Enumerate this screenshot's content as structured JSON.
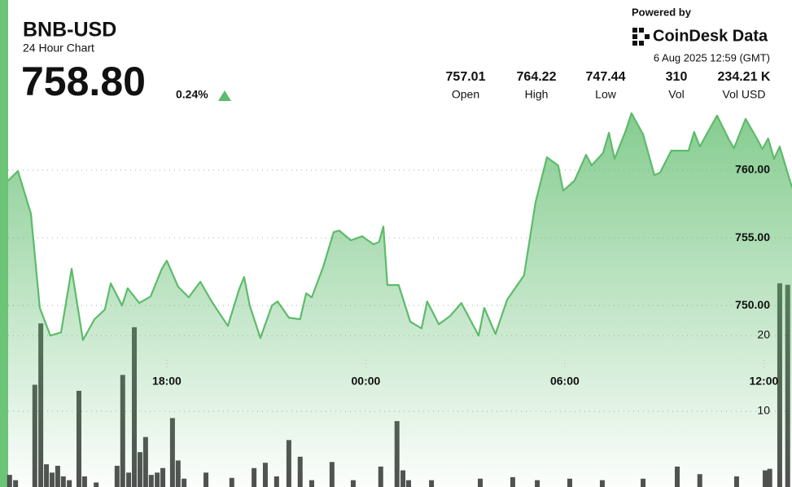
{
  "header": {
    "title": "BNB-USD",
    "subtitle": "24 Hour Chart",
    "price": "758.80",
    "change": "0.24%",
    "powered_by": "Powered by",
    "brand": "CoinDesk Data",
    "timestamp": "6 Aug 2025 12:59 (GMT)",
    "stats": [
      {
        "value": "757.01",
        "label": "Open"
      },
      {
        "value": "764.22",
        "label": "High"
      },
      {
        "value": "747.44",
        "label": "Low"
      },
      {
        "value": "310",
        "label": "Vol"
      },
      {
        "value": "234.21 K",
        "label": "Vol USD"
      }
    ]
  },
  "chart_data": {
    "type": "line",
    "xlim": [
      12.97,
      36.85
    ],
    "xticks": [
      {
        "value": 18,
        "label": "18:00"
      },
      {
        "value": 24,
        "label": "00:00"
      },
      {
        "value": 30,
        "label": "06:00"
      },
      {
        "value": 36,
        "label": "12:00"
      }
    ],
    "ylim": [
      737,
      765
    ],
    "yticks": [
      {
        "value": 750,
        "label": "750.00"
      },
      {
        "value": 755,
        "label": "755.00"
      },
      {
        "value": 760,
        "label": "760.00"
      }
    ],
    "y2lim": [
      0,
      50
    ],
    "y2ticks": [
      10,
      20
    ],
    "grid": true,
    "series": [
      {
        "type": "line",
        "color": "#5dbb6b",
        "x": [
          13.21,
          13.51,
          13.9,
          14.17,
          14.49,
          14.81,
          15.13,
          15.47,
          15.82,
          16.13,
          16.31,
          16.65,
          16.82,
          17.17,
          17.51,
          17.85,
          18.0,
          18.34,
          18.66,
          19.01,
          19.35,
          19.84,
          20.18,
          20.33,
          20.5,
          20.82,
          21.17,
          21.34,
          21.68,
          22.02,
          22.2,
          22.37,
          22.71,
          23.03,
          23.2,
          23.55,
          23.89,
          24.23,
          24.4,
          24.53,
          24.65,
          24.99,
          25.34,
          25.68,
          25.85,
          26.2,
          26.54,
          26.88,
          27.4,
          27.57,
          27.91,
          28.26,
          28.77,
          29.12,
          29.46,
          29.8,
          29.95,
          30.29,
          30.64,
          30.81,
          31.15,
          31.33,
          31.5,
          31.84,
          32.01,
          32.36,
          32.7,
          32.87,
          33.21,
          33.73,
          33.9,
          34.07,
          34.59,
          34.93,
          35.1,
          35.45,
          35.79,
          35.96,
          36.13,
          36.31,
          36.48,
          36.85
        ],
        "values": [
          759.22,
          759.94,
          756.81,
          749.82,
          747.77,
          748.01,
          752.71,
          747.44,
          748.98,
          749.7,
          751.63,
          750.0,
          751.27,
          750.18,
          750.66,
          752.71,
          753.31,
          751.39,
          750.6,
          751.75,
          750.3,
          748.49,
          751.2,
          752.11,
          750.0,
          747.59,
          750.0,
          750.3,
          749.1,
          748.98,
          750.9,
          750.6,
          752.83,
          755.42,
          755.54,
          754.82,
          755.12,
          754.52,
          754.7,
          755.84,
          751.51,
          751.51,
          748.8,
          748.31,
          750.3,
          748.61,
          749.22,
          750.18,
          747.77,
          749.82,
          747.89,
          750.42,
          752.23,
          757.65,
          760.96,
          760.36,
          758.49,
          759.22,
          761.14,
          760.36,
          761.27,
          762.77,
          760.84,
          762.95,
          764.22,
          762.65,
          759.64,
          759.82,
          761.45,
          761.45,
          762.83,
          761.75,
          764.04,
          762.35,
          761.63,
          763.8,
          762.35,
          761.57,
          762.35,
          760.84,
          761.75,
          758.73
        ]
      },
      {
        "type": "bar",
        "axis": "y2",
        "color": "#3c3c3c",
        "x": [
          13.26,
          13.44,
          14.02,
          14.2,
          14.37,
          14.54,
          14.71,
          14.88,
          15.06,
          15.35,
          15.52,
          15.87,
          16.5,
          16.67,
          16.85,
          17.02,
          17.19,
          17.36,
          17.53,
          17.71,
          17.88,
          18.17,
          18.34,
          18.52,
          19.18,
          19.96,
          20.63,
          20.97,
          21.31,
          21.68,
          22.02,
          22.37,
          22.98,
          23.62,
          24.45,
          24.94,
          25.12,
          25.29,
          25.98,
          27.45,
          28.43,
          29.17,
          30.15,
          31.13,
          32.36,
          33.39,
          34.07,
          35.18,
          36.04,
          36.18,
          36.48,
          36.72
        ],
        "values": [
          1.6,
          0.9,
          13.5,
          21.6,
          3.0,
          1.9,
          2.8,
          1.4,
          0.9,
          12.7,
          1.4,
          0.6,
          2.8,
          14.8,
          1.9,
          21.1,
          4.6,
          6.6,
          1.6,
          1.9,
          2.5,
          9.1,
          3.5,
          1.1,
          1.9,
          1.2,
          2.5,
          3.2,
          1.4,
          6.2,
          4.0,
          0.9,
          3.3,
          0.9,
          2.7,
          8.7,
          2.2,
          0.9,
          0.9,
          1.1,
          1.3,
          0.9,
          1.1,
          0.9,
          1.1,
          2.7,
          1.7,
          1.4,
          2.2,
          2.4,
          26.9,
          26.7
        ]
      }
    ]
  }
}
